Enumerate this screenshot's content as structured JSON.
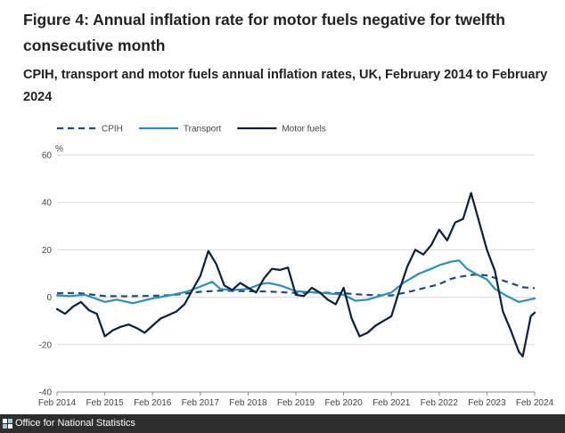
{
  "figure": {
    "title": "Figure 4: Annual inflation rate for motor fuels negative for twelfth consecutive month",
    "subtitle": "CPIH, transport and motor fuels annual inflation rates, UK, February 2014 to February 2024"
  },
  "footer": {
    "source": "Office for National Statistics"
  },
  "chart_data": {
    "type": "line",
    "ylabel": "%",
    "ylim": [
      -40,
      60
    ],
    "yticks": [
      -40,
      -20,
      0,
      20,
      40,
      60
    ],
    "xlim": [
      2014.083,
      2024.083
    ],
    "xticks": [
      {
        "label": "Feb 2014",
        "x": 2014.083
      },
      {
        "label": "Feb 2015",
        "x": 2015.083
      },
      {
        "label": "Feb 2016",
        "x": 2016.083
      },
      {
        "label": "Feb 2017",
        "x": 2017.083
      },
      {
        "label": "Feb 2018",
        "x": 2018.083
      },
      {
        "label": "Feb 2019",
        "x": 2019.083
      },
      {
        "label": "Feb 2020",
        "x": 2020.083
      },
      {
        "label": "Feb 2021",
        "x": 2021.083
      },
      {
        "label": "Feb 2022",
        "x": 2022.083
      },
      {
        "label": "Feb 2023",
        "x": 2023.083
      },
      {
        "label": "Feb 2024",
        "x": 2024.083
      }
    ],
    "grid": "horizontal",
    "legend_position": "top-left",
    "series": [
      {
        "name": "CPIH",
        "color": "#1f4e79",
        "style": "dashed",
        "points": [
          [
            2014.083,
            1.7
          ],
          [
            2014.5,
            1.8
          ],
          [
            2015.083,
            0.5
          ],
          [
            2015.5,
            0.4
          ],
          [
            2016.083,
            0.6
          ],
          [
            2016.5,
            0.9
          ],
          [
            2017.083,
            2.3
          ],
          [
            2017.5,
            2.8
          ],
          [
            2018.083,
            2.5
          ],
          [
            2018.5,
            2.4
          ],
          [
            2019.083,
            1.8
          ],
          [
            2019.5,
            2.0
          ],
          [
            2020.083,
            1.7
          ],
          [
            2020.5,
            1.0
          ],
          [
            2021.083,
            0.7
          ],
          [
            2021.5,
            2.5
          ],
          [
            2022.083,
            5.5
          ],
          [
            2022.333,
            7.8
          ],
          [
            2022.5,
            8.6
          ],
          [
            2022.833,
            9.6
          ],
          [
            2023.083,
            9.2
          ],
          [
            2023.5,
            6.5
          ],
          [
            2023.833,
            4.2
          ],
          [
            2024.083,
            3.8
          ]
        ]
      },
      {
        "name": "Transport",
        "color": "#2a8fbd",
        "style": "solid",
        "points": [
          [
            2014.083,
            0.8
          ],
          [
            2014.333,
            0.5
          ],
          [
            2014.667,
            1.0
          ],
          [
            2015.083,
            -2.0
          ],
          [
            2015.333,
            -1.0
          ],
          [
            2015.667,
            -2.5
          ],
          [
            2016.083,
            -0.5
          ],
          [
            2016.5,
            1.0
          ],
          [
            2016.833,
            2.5
          ],
          [
            2017.083,
            4.5
          ],
          [
            2017.333,
            6.5
          ],
          [
            2017.5,
            3.5
          ],
          [
            2017.75,
            3.0
          ],
          [
            2018.083,
            3.5
          ],
          [
            2018.333,
            5.5
          ],
          [
            2018.5,
            6.0
          ],
          [
            2018.75,
            5.0
          ],
          [
            2019.083,
            2.5
          ],
          [
            2019.5,
            2.0
          ],
          [
            2019.833,
            1.5
          ],
          [
            2020.083,
            1.0
          ],
          [
            2020.333,
            -1.5
          ],
          [
            2020.583,
            -1.0
          ],
          [
            2020.833,
            0.5
          ],
          [
            2021.083,
            2.0
          ],
          [
            2021.333,
            6.0
          ],
          [
            2021.667,
            10.0
          ],
          [
            2021.917,
            12.0
          ],
          [
            2022.083,
            13.5
          ],
          [
            2022.333,
            15.0
          ],
          [
            2022.5,
            15.5
          ],
          [
            2022.667,
            12.0
          ],
          [
            2022.833,
            10.0
          ],
          [
            2023.083,
            7.5
          ],
          [
            2023.25,
            3.5
          ],
          [
            2023.5,
            0.5
          ],
          [
            2023.75,
            -2.0
          ],
          [
            2024.083,
            -0.5
          ]
        ]
      },
      {
        "name": "Motor fuels",
        "color": "#0b1e3c",
        "style": "solid",
        "points": [
          [
            2014.083,
            -5.0
          ],
          [
            2014.25,
            -7.0
          ],
          [
            2014.417,
            -4.0
          ],
          [
            2014.583,
            -2.0
          ],
          [
            2014.75,
            -5.5
          ],
          [
            2014.917,
            -7.0
          ],
          [
            2015.083,
            -16.5
          ],
          [
            2015.25,
            -14.0
          ],
          [
            2015.417,
            -12.5
          ],
          [
            2015.583,
            -11.5
          ],
          [
            2015.75,
            -13.0
          ],
          [
            2015.917,
            -15.0
          ],
          [
            2016.083,
            -12.0
          ],
          [
            2016.25,
            -9.0
          ],
          [
            2016.417,
            -7.5
          ],
          [
            2016.583,
            -6.0
          ],
          [
            2016.75,
            -3.0
          ],
          [
            2016.917,
            3.0
          ],
          [
            2017.083,
            9.0
          ],
          [
            2017.25,
            19.5
          ],
          [
            2017.417,
            14.0
          ],
          [
            2017.583,
            5.0
          ],
          [
            2017.75,
            3.0
          ],
          [
            2017.917,
            6.0
          ],
          [
            2018.083,
            4.0
          ],
          [
            2018.25,
            2.0
          ],
          [
            2018.417,
            8.0
          ],
          [
            2018.583,
            12.0
          ],
          [
            2018.75,
            11.5
          ],
          [
            2018.917,
            12.5
          ],
          [
            2019.083,
            1.0
          ],
          [
            2019.25,
            0.5
          ],
          [
            2019.417,
            4.0
          ],
          [
            2019.583,
            2.0
          ],
          [
            2019.75,
            -1.0
          ],
          [
            2019.917,
            -3.0
          ],
          [
            2020.083,
            4.0
          ],
          [
            2020.25,
            -9.0
          ],
          [
            2020.417,
            -16.5
          ],
          [
            2020.583,
            -15.0
          ],
          [
            2020.75,
            -12.0
          ],
          [
            2020.917,
            -10.0
          ],
          [
            2021.083,
            -8.0
          ],
          [
            2021.25,
            3.0
          ],
          [
            2021.417,
            13.0
          ],
          [
            2021.583,
            20.0
          ],
          [
            2021.75,
            18.0
          ],
          [
            2021.917,
            22.0
          ],
          [
            2022.083,
            28.5
          ],
          [
            2022.25,
            24.0
          ],
          [
            2022.417,
            31.5
          ],
          [
            2022.583,
            33.0
          ],
          [
            2022.75,
            44.0
          ],
          [
            2022.917,
            32.0
          ],
          [
            2023.083,
            20.0
          ],
          [
            2023.25,
            11.0
          ],
          [
            2023.417,
            -6.0
          ],
          [
            2023.583,
            -14.0
          ],
          [
            2023.75,
            -23.0
          ],
          [
            2023.833,
            -25.0
          ],
          [
            2024.0,
            -8.0
          ],
          [
            2024.083,
            -6.5
          ]
        ]
      }
    ]
  }
}
